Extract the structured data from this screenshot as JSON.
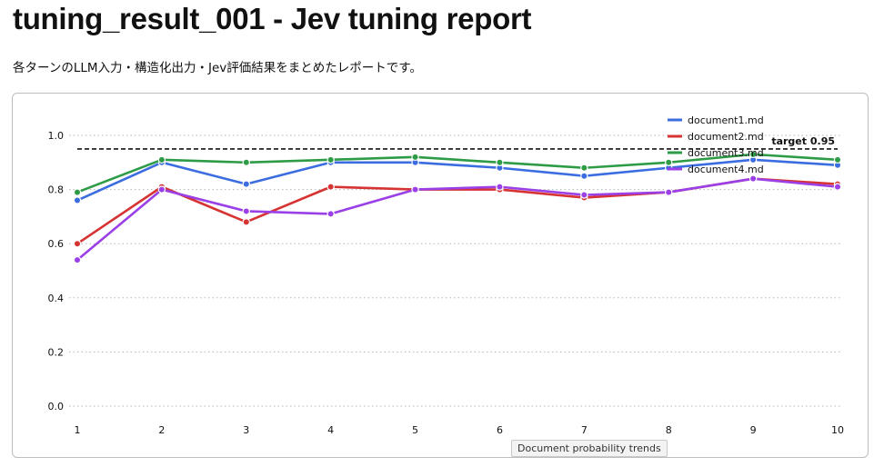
{
  "page": {
    "title": "tuning_result_001 - Jev tuning report",
    "subtitle": "各ターンのLLM入力・構造化出力・Jev評価結果をまとめたレポートです。"
  },
  "chart_data": {
    "type": "line",
    "x": [
      1,
      2,
      3,
      4,
      5,
      6,
      7,
      8,
      9,
      10
    ],
    "ylim": [
      0,
      1.1
    ],
    "yticks": [
      "0.0",
      "0.2",
      "0.4",
      "0.6",
      "0.8",
      "1.0"
    ],
    "grid": "horizontal dotted",
    "legend_position": "top-right",
    "series": [
      {
        "name": "document1.md",
        "color": "#3b6de0",
        "values": [
          0.76,
          0.9,
          0.82,
          0.9,
          0.9,
          0.88,
          0.85,
          0.88,
          0.91,
          0.89
        ]
      },
      {
        "name": "document2.md",
        "color": "#d63333",
        "values": [
          0.6,
          0.81,
          0.68,
          0.81,
          0.8,
          0.8,
          0.77,
          0.79,
          0.84,
          0.82
        ]
      },
      {
        "name": "document3.md",
        "color": "#2e9c47",
        "values": [
          0.79,
          0.91,
          0.9,
          0.91,
          0.92,
          0.9,
          0.88,
          0.9,
          0.93,
          0.91
        ]
      },
      {
        "name": "document4.md",
        "color": "#9b40e6",
        "values": [
          0.54,
          0.8,
          0.72,
          0.71,
          0.8,
          0.81,
          0.78,
          0.79,
          0.84,
          0.81
        ]
      }
    ],
    "reference_line": {
      "value": 0.95,
      "label": "target 0.95",
      "style": "dashed",
      "color": "#111111"
    },
    "tooltip": "Document probability trends"
  }
}
